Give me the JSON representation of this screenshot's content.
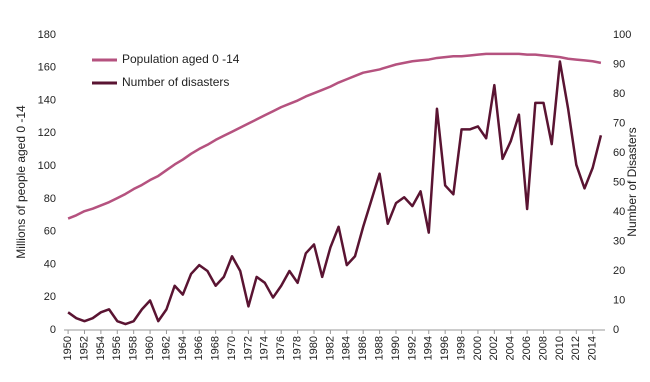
{
  "chart_data": {
    "type": "line",
    "x": [
      1950,
      1951,
      1952,
      1953,
      1954,
      1955,
      1956,
      1957,
      1958,
      1959,
      1960,
      1961,
      1962,
      1963,
      1964,
      1965,
      1966,
      1967,
      1968,
      1969,
      1970,
      1971,
      1972,
      1973,
      1974,
      1975,
      1976,
      1977,
      1978,
      1979,
      1980,
      1981,
      1982,
      1983,
      1984,
      1985,
      1986,
      1987,
      1988,
      1989,
      1990,
      1991,
      1992,
      1993,
      1994,
      1995,
      1996,
      1997,
      1998,
      1999,
      2000,
      2001,
      2002,
      2003,
      2004,
      2005,
      2006,
      2007,
      2008,
      2009,
      2010,
      2011,
      2012,
      2013,
      2014,
      2015
    ],
    "xlim": [
      1949.5,
      2015.5
    ],
    "xticks": [
      1950,
      1952,
      1954,
      1956,
      1958,
      1960,
      1962,
      1964,
      1966,
      1968,
      1970,
      1972,
      1974,
      1976,
      1978,
      1980,
      1982,
      1984,
      1986,
      1988,
      1990,
      1992,
      1994,
      1996,
      1998,
      2000,
      2002,
      2004,
      2006,
      2008,
      2010,
      2012,
      2014
    ],
    "ylim": [
      0,
      180
    ],
    "yticks": [
      0,
      20,
      40,
      60,
      80,
      100,
      120,
      140,
      160,
      180
    ],
    "y2lim": [
      0,
      100
    ],
    "y2ticks": [
      0,
      10,
      20,
      30,
      40,
      50,
      60,
      70,
      80,
      90,
      100
    ],
    "ylabel": "Millions of people aged  0 -14",
    "y2label": "Number of Disasters",
    "legend": "upper left",
    "series": [
      {
        "name": "Population aged 0 -14",
        "color": "#b5527f",
        "values": [
          68,
          70,
          72.5,
          74,
          76,
          78,
          80.5,
          83,
          86,
          88.5,
          91.5,
          94,
          97.5,
          101,
          104,
          107.5,
          110.5,
          113,
          116,
          118.5,
          121,
          123.5,
          126,
          128.5,
          131,
          133.5,
          136,
          138,
          140,
          142.5,
          144.5,
          146.5,
          148.5,
          151,
          153,
          155,
          157,
          158,
          159,
          160.5,
          162,
          163,
          164,
          164.5,
          165,
          166,
          166.5,
          167,
          167,
          167.5,
          168,
          168.5,
          168.5,
          168.5,
          168.5,
          168.5,
          168,
          168,
          167.5,
          167,
          166.5,
          165.5,
          165,
          164.5,
          164,
          163
        ]
      },
      {
        "name": "Number of disasters",
        "color": "#5a1432",
        "axis": "y2",
        "values": [
          6,
          4,
          3,
          4,
          6,
          7,
          3,
          2,
          3,
          7,
          10,
          3,
          7,
          15,
          12,
          19,
          22,
          20,
          15,
          18,
          25,
          20,
          8,
          18,
          16,
          11,
          15,
          20,
          16,
          26,
          29,
          18,
          28,
          35,
          22,
          25,
          35,
          44,
          53,
          36,
          43,
          45,
          42,
          47,
          33,
          75,
          49,
          46,
          68,
          68,
          69,
          65,
          83,
          58,
          64,
          73,
          41,
          77,
          77,
          63,
          91,
          75,
          56,
          48,
          55,
          66
        ]
      }
    ]
  }
}
